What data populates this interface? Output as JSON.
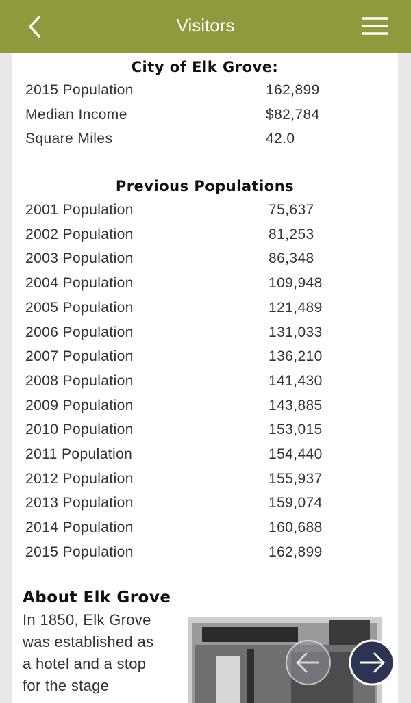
{
  "header": {
    "title": "Visitors"
  },
  "city": {
    "heading": "City of Elk Grove:",
    "rows": [
      [
        "2015 Population",
        "162,899"
      ],
      [
        "Median Income",
        "$82,784"
      ],
      [
        "Square Miles",
        "42.0"
      ]
    ]
  },
  "previous": {
    "heading": "Previous Populations",
    "rows": [
      [
        "2001 Population",
        "75,637"
      ],
      [
        "2002 Population",
        "81,253"
      ],
      [
        "2003 Population",
        "86,348"
      ],
      [
        "2004 Population",
        "109,948"
      ],
      [
        "2005 Population",
        "121,489"
      ],
      [
        "2006 Population",
        "131,033"
      ],
      [
        "2007 Population",
        "136,210"
      ],
      [
        "2008 Population",
        "141,430"
      ],
      [
        "2009 Population",
        "143,885"
      ],
      [
        "2010 Population",
        "153,015"
      ],
      [
        "2011 Population",
        "154,440"
      ],
      [
        "2012 Population",
        "155,937"
      ],
      [
        "2013 Population",
        "159,074"
      ],
      [
        "2014 Population",
        "160,688"
      ],
      [
        "2015 Population",
        "162,899"
      ]
    ]
  },
  "about": {
    "heading": "About Elk Grove",
    "lines": [
      "In 1850, Elk Grove",
      "was established as",
      "a hotel and a stop",
      "for the stage"
    ]
  }
}
